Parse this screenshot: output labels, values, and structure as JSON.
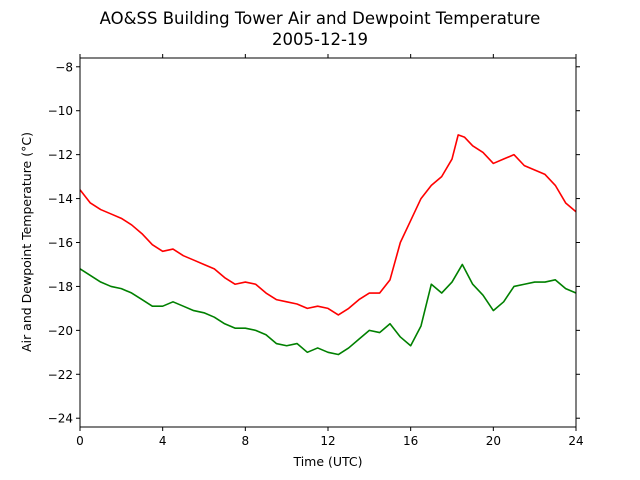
{
  "chart_data": {
    "type": "line",
    "title": "AO&SS Building Tower Air and Dewpoint Temperature",
    "subtitle": "2005-12-19",
    "xlabel": "Time (UTC)",
    "ylabel": "Air and Dewpoint Temperature (°C)",
    "xlim": [
      0,
      24
    ],
    "ylim": [
      -24.4,
      -7.6
    ],
    "xticks": [
      0,
      4,
      8,
      12,
      16,
      20,
      24
    ],
    "yticks": [
      -24,
      -22,
      -20,
      -18,
      -16,
      -14,
      -12,
      -10,
      -8
    ],
    "grid": false,
    "legend": "none",
    "series": [
      {
        "color": "#ff0000",
        "x": [
          0,
          0.5,
          1,
          1.5,
          2,
          2.5,
          3,
          3.5,
          4,
          4.5,
          5,
          5.5,
          6,
          6.5,
          7,
          7.5,
          8,
          8.5,
          9,
          9.5,
          10,
          10.5,
          11,
          11.5,
          12,
          12.5,
          13,
          13.5,
          14,
          14.5,
          15,
          15.5,
          16,
          16.5,
          17,
          17.5,
          18,
          18.3,
          18.6,
          19,
          19.5,
          20,
          20.5,
          21,
          21.5,
          22,
          22.5,
          23,
          23.5,
          24
        ],
        "y": [
          -13.6,
          -14.2,
          -14.5,
          -14.7,
          -14.9,
          -15.2,
          -15.6,
          -16.1,
          -16.4,
          -16.3,
          -16.6,
          -16.8,
          -17.0,
          -17.2,
          -17.6,
          -17.9,
          -17.8,
          -17.9,
          -18.3,
          -18.6,
          -18.7,
          -18.8,
          -19.0,
          -18.9,
          -19.0,
          -19.3,
          -19.0,
          -18.6,
          -18.3,
          -18.3,
          -17.7,
          -16.0,
          -15.0,
          -14.0,
          -13.4,
          -13.0,
          -12.2,
          -11.1,
          -11.2,
          -11.6,
          -11.9,
          -12.4,
          -12.2,
          -12.0,
          -12.5,
          -12.7,
          -12.9,
          -13.4,
          -14.2,
          -14.6
        ]
      },
      {
        "color": "#008000",
        "x": [
          0,
          0.5,
          1,
          1.5,
          2,
          2.5,
          3,
          3.5,
          4,
          4.5,
          5,
          5.5,
          6,
          6.5,
          7,
          7.5,
          8,
          8.5,
          9,
          9.5,
          10,
          10.5,
          11,
          11.5,
          12,
          12.5,
          13,
          13.5,
          14,
          14.5,
          15,
          15.5,
          16,
          16.5,
          17,
          17.5,
          18,
          18.5,
          19,
          19.5,
          20,
          20.5,
          21,
          21.5,
          22,
          22.5,
          23,
          23.5,
          24
        ],
        "y": [
          -17.2,
          -17.5,
          -17.8,
          -18.0,
          -18.1,
          -18.3,
          -18.6,
          -18.9,
          -18.9,
          -18.7,
          -18.9,
          -19.1,
          -19.2,
          -19.4,
          -19.7,
          -19.9,
          -19.9,
          -20.0,
          -20.2,
          -20.6,
          -20.7,
          -20.6,
          -21.0,
          -20.8,
          -21.0,
          -21.1,
          -20.8,
          -20.4,
          -20.0,
          -20.1,
          -19.7,
          -20.3,
          -20.7,
          -19.8,
          -17.9,
          -18.3,
          -17.8,
          -17.0,
          -17.9,
          -18.4,
          -19.1,
          -18.7,
          -18.0,
          -17.9,
          -17.8,
          -17.8,
          -17.7,
          -18.1,
          -18.3
        ]
      }
    ]
  }
}
